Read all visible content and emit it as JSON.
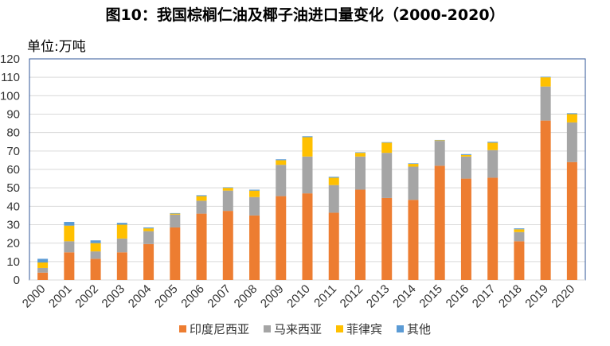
{
  "chart_data": {
    "type": "bar",
    "stacked": true,
    "title": "图10：我国棕榈仁油及椰子油进口量变化（2000-2020）",
    "ylabel": "单位:万吨",
    "xlabel": "",
    "ylim": [
      0,
      120
    ],
    "yticks": [
      0,
      10,
      20,
      30,
      40,
      50,
      60,
      70,
      80,
      90,
      100,
      110,
      120
    ],
    "grid": true,
    "legend": "bottom",
    "categories": [
      "2000",
      "2001",
      "2002",
      "2003",
      "2004",
      "2005",
      "2006",
      "2007",
      "2008",
      "2009",
      "2010",
      "2011",
      "2012",
      "2013",
      "2014",
      "2015",
      "2016",
      "2017",
      "2018",
      "2019",
      "2020"
    ],
    "series": [
      {
        "name": "印度尼西亚",
        "color": "#ED7D31",
        "values": [
          4,
          15,
          11.5,
          15,
          19.5,
          28.5,
          36,
          37.5,
          35,
          45.5,
          47,
          36.5,
          49,
          44.5,
          43.5,
          62,
          55,
          55.5,
          21,
          86.5,
          64
        ]
      },
      {
        "name": "马来西亚",
        "color": "#A5A5A5",
        "values": [
          2.5,
          6,
          4,
          7.5,
          7,
          7,
          7,
          11,
          10,
          17,
          20,
          15,
          18,
          24.5,
          18,
          13.5,
          12,
          15,
          5,
          18.5,
          21.5
        ]
      },
      {
        "name": "菲律宾",
        "color": "#FFC000",
        "values": [
          3,
          8.5,
          4.5,
          7.5,
          1.5,
          0.5,
          2.5,
          1.5,
          3.5,
          2.5,
          10.5,
          4,
          2,
          5.5,
          1.5,
          0.3,
          0.8,
          4,
          1.5,
          5,
          4.5
        ]
      },
      {
        "name": "其他",
        "color": "#5B9BD5",
        "values": [
          2,
          2,
          1.5,
          1,
          0.5,
          0.3,
          0.5,
          0.3,
          0.5,
          0.5,
          0.5,
          0.5,
          0.3,
          0.3,
          0.3,
          0.2,
          0.5,
          0.5,
          0.5,
          0.3,
          0.5
        ]
      }
    ]
  }
}
